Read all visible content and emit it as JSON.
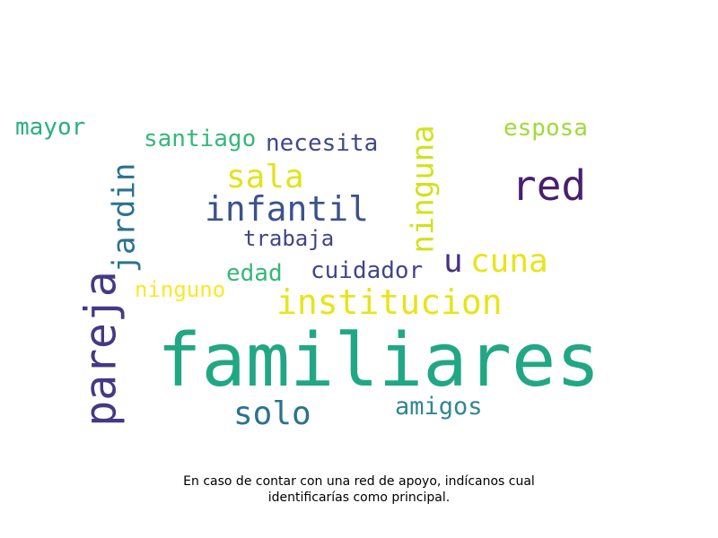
{
  "caption": {
    "line1": "En caso de contar con una red de apoyo, indícanos cual",
    "line2": "identificarías como principal."
  },
  "words": [
    {
      "text": "familiares",
      "color": "#22a785"
    },
    {
      "text": "pareja",
      "color": "#443983"
    },
    {
      "text": "institucion",
      "color": "#e8e419"
    },
    {
      "text": "red",
      "color": "#481f70"
    },
    {
      "text": "infantil",
      "color": "#3b528b"
    },
    {
      "text": "jardin",
      "color": "#2c728e"
    },
    {
      "text": "ninguna",
      "color": "#d2e21b"
    },
    {
      "text": "sala",
      "color": "#e1e31d"
    },
    {
      "text": "cuna",
      "color": "#e8e419"
    },
    {
      "text": "solo",
      "color": "#2c728e"
    },
    {
      "text": "santiago",
      "color": "#35b779"
    },
    {
      "text": "necesita",
      "color": "#3e4989"
    },
    {
      "text": "esposa",
      "color": "#a0da39"
    },
    {
      "text": "mayor",
      "color": "#29af7f"
    },
    {
      "text": "trabaja",
      "color": "#414487"
    },
    {
      "text": "cuidador",
      "color": "#3f4788"
    },
    {
      "text": "u",
      "color": "#46327e"
    },
    {
      "text": "edad",
      "color": "#35b779"
    },
    {
      "text": "ninguno",
      "color": "#fde725"
    },
    {
      "text": "amigos",
      "color": "#31868f"
    }
  ]
}
